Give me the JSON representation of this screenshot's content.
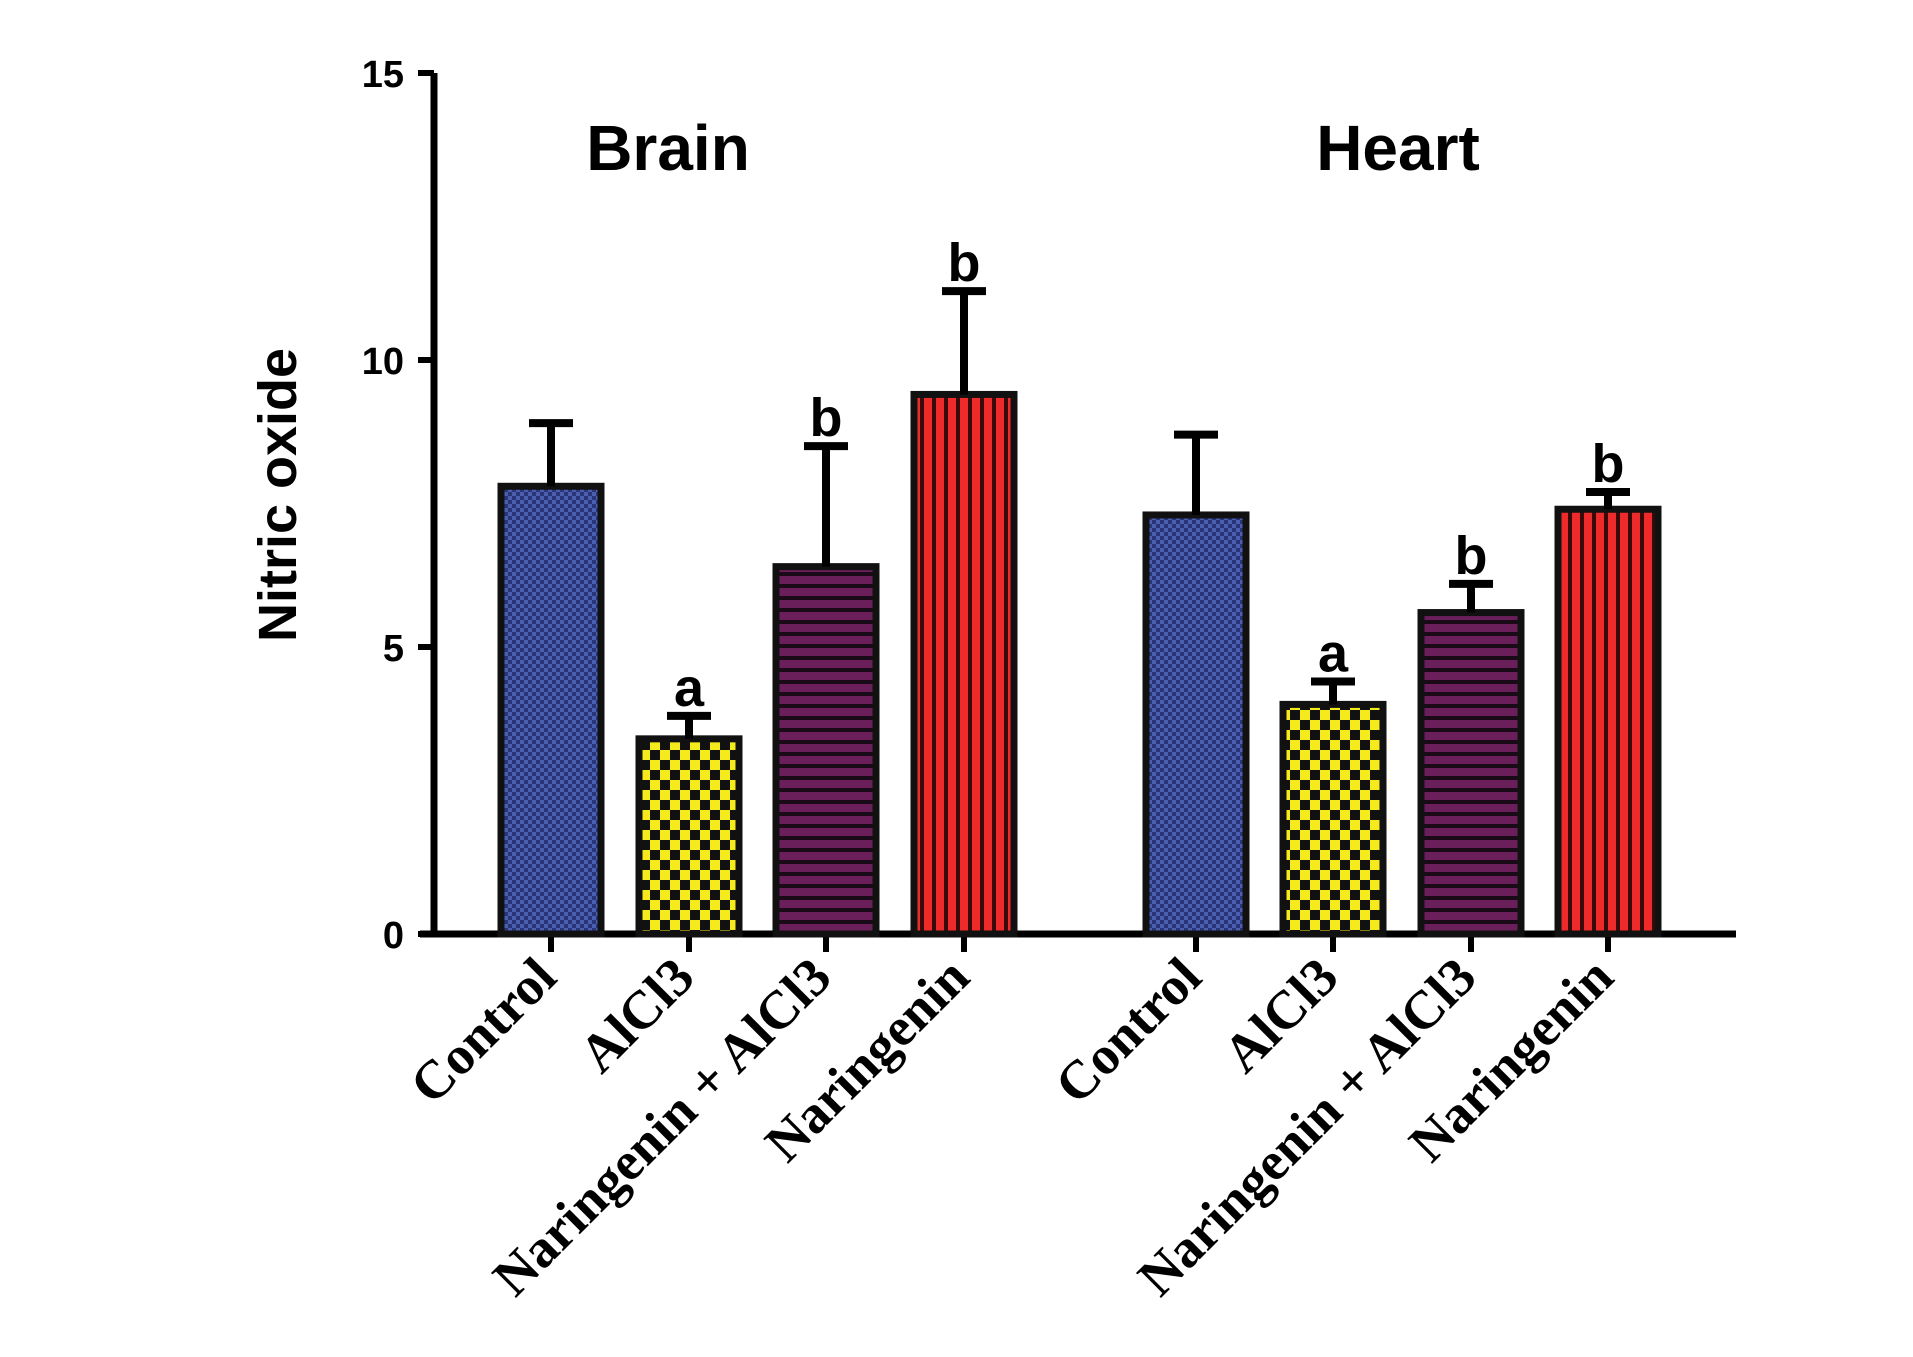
{
  "chart_data": {
    "type": "bar",
    "title": "",
    "ylabel": "Nitric oxide",
    "xlabel": "",
    "ylim": [
      0,
      15
    ],
    "yticks": [
      0,
      5,
      10,
      15
    ],
    "grid": false,
    "legend": "none",
    "groups": [
      {
        "name": "Brain",
        "bars": [
          {
            "category": "Control",
            "value": 7.8,
            "error": 1.1,
            "sig": "",
            "pattern": "dots-blue"
          },
          {
            "category": "AlCl3",
            "value": 3.4,
            "error": 0.4,
            "sig": "a",
            "pattern": "checker-yellow"
          },
          {
            "category": "Naringenin + AlCl3",
            "value": 6.4,
            "error": 2.1,
            "sig": "b",
            "pattern": "hstripe-purple"
          },
          {
            "category": "Naringenin",
            "value": 9.4,
            "error": 1.8,
            "sig": "b",
            "pattern": "vstripe-red"
          }
        ]
      },
      {
        "name": "Heart",
        "bars": [
          {
            "category": "Control",
            "value": 7.3,
            "error": 1.4,
            "sig": "",
            "pattern": "dots-blue"
          },
          {
            "category": "AlCl3",
            "value": 4.0,
            "error": 0.4,
            "sig": "a",
            "pattern": "checker-yellow"
          },
          {
            "category": "Naringenin + AlCl3",
            "value": 5.6,
            "error": 0.5,
            "sig": "b",
            "pattern": "hstripe-purple"
          },
          {
            "category": "Naringenin",
            "value": 7.4,
            "error": 0.3,
            "sig": "b",
            "pattern": "vstripe-red"
          }
        ]
      }
    ],
    "colors": {
      "dots-blue": "#4a5fb0",
      "checker-yellow": "#f5ea1c",
      "hstripe-purple": "#6a1f5a",
      "vstripe-red": "#ee2a2a"
    }
  }
}
